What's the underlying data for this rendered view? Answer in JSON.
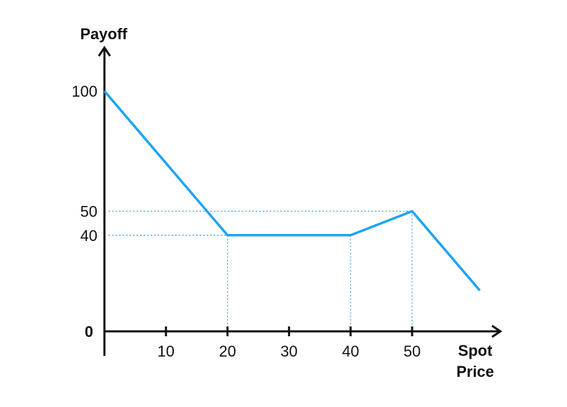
{
  "colors": {
    "line": "#1ea4f0",
    "guide": "#3aa6e8",
    "axis": "#111111"
  },
  "chart_data": {
    "type": "line",
    "ylabel": "Payoff",
    "xlabel_line1": "Spot",
    "xlabel_line2": "Price",
    "zero_label": "0",
    "xlim": [
      0,
      62
    ],
    "ylim": [
      0,
      100
    ],
    "x_ticks": [
      {
        "value": 10,
        "label": "10"
      },
      {
        "value": 20,
        "label": "20"
      },
      {
        "value": 30,
        "label": "30"
      },
      {
        "value": 40,
        "label": "40"
      },
      {
        "value": 50,
        "label": "50"
      }
    ],
    "y_ticks": [
      {
        "value": 100,
        "label": "100"
      },
      {
        "value": 50,
        "label": "50"
      },
      {
        "value": 40,
        "label": "40"
      }
    ],
    "series": [
      {
        "x": [
          0,
          20,
          40,
          50,
          61
        ],
        "y": [
          100,
          40,
          40,
          50,
          17
        ]
      }
    ],
    "guides": {
      "horizontal": [
        {
          "y": 50,
          "x_to": 50
        },
        {
          "y": 40,
          "x_to": 20
        }
      ],
      "vertical": [
        {
          "x": 20,
          "y_to": 40
        },
        {
          "x": 40,
          "y_to": 40
        },
        {
          "x": 50,
          "y_to": 50
        }
      ]
    }
  }
}
